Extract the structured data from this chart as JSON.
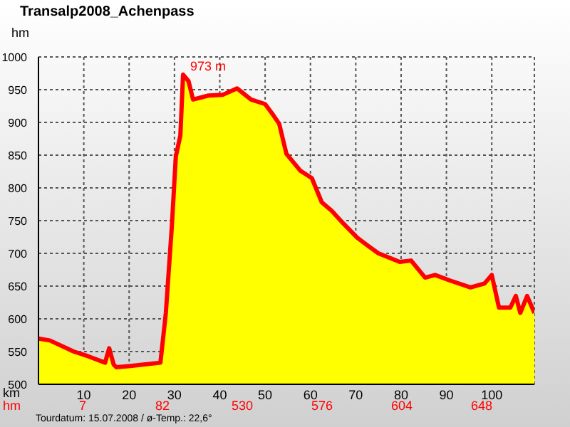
{
  "chart_data": {
    "type": "area",
    "title": "Transalp2008_Achenpass",
    "ylabel": "hm",
    "xlabel": "km",
    "x": [
      0,
      2.5,
      7.8,
      10.9,
      14.7,
      15.6,
      16.6,
      17.2,
      20.3,
      26.9,
      28.1,
      29.4,
      30.3,
      31.3,
      31.9,
      33.1,
      34.1,
      37.5,
      40.6,
      43.8,
      46.9,
      50,
      51.6,
      53.1,
      54.7,
      57.8,
      60.3,
      62.5,
      64.7,
      67.2,
      70.3,
      72.8,
      75,
      79.7,
      82.2,
      85.3,
      87.5,
      90.6,
      95.3,
      98.4,
      100,
      101.6,
      104.1,
      105.3,
      106.3,
      107.8,
      109.4
    ],
    "series": [
      {
        "color": "#ff0000",
        "values": [
          570,
          567,
          550,
          543,
          533,
          555,
          530,
          526,
          528,
          533,
          609,
          739,
          848,
          880,
          973,
          963,
          935,
          941,
          942,
          952,
          935,
          928,
          913,
          898,
          852,
          826,
          815,
          778,
          765,
          746,
          724,
          711,
          700,
          687,
          689,
          663,
          667,
          659,
          648,
          654,
          667,
          617,
          617,
          635,
          609,
          635,
          609
        ]
      }
    ],
    "xlim": [
      0,
      109.4
    ],
    "xticks": [
      10,
      20,
      30,
      40,
      50,
      60,
      70,
      80,
      90,
      100
    ],
    "ylim": [
      500,
      1000
    ],
    "yticks": [
      500,
      550,
      600,
      650,
      700,
      750,
      800,
      850,
      900,
      950,
      1000
    ],
    "grid": true,
    "legend": false,
    "annotations": [
      {
        "text": "973 m",
        "x": 31.9,
        "y": 973
      },
      "hm",
      "Tourdatum: 15.07.2008 / ø-Temp.: 22,6°",
      "7",
      "82",
      "530",
      "576",
      "604",
      "648"
    ]
  }
}
